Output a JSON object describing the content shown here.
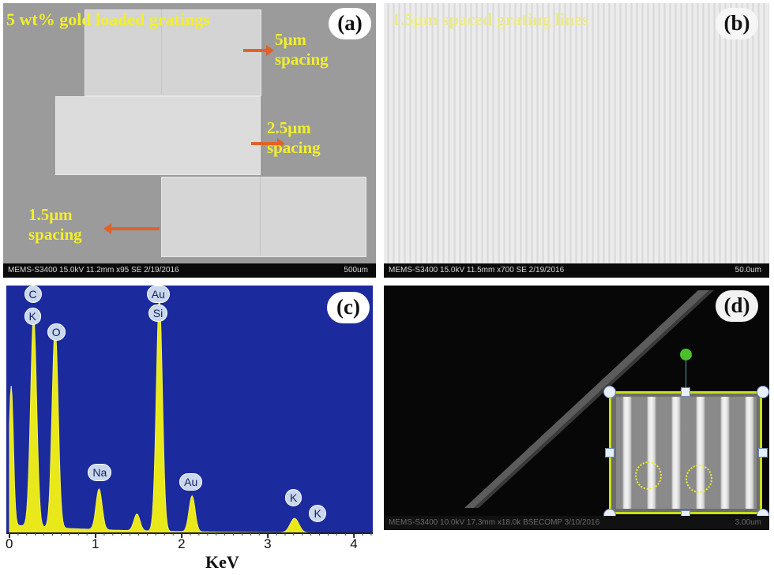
{
  "panel_a": {
    "title": "5 wt% gold loaded gratings",
    "letter": "(a)",
    "label_5um": [
      "5μm",
      "spacing"
    ],
    "label_25um": [
      "2.5μm",
      "spacing"
    ],
    "label_15um": [
      "1.5μm",
      "spacing"
    ],
    "info_bar": "MEMS-S3400 15.0kV 11.2mm x95 SE  2/19/2016",
    "scale": "500um"
  },
  "panel_b": {
    "title": "1.5μm spaced grating lines",
    "letter": "(b)",
    "info_bar": "MEMS-S3400 15.0kV 11.5mm x700 SE  2/19/2016",
    "scale": "50.0um"
  },
  "panel_c": {
    "letter": "(c)",
    "background_color": "#1b2a9c",
    "peak_color": "#e8e81a",
    "peak_labels": [
      "C",
      "K",
      "O",
      "Au",
      "Si",
      "Na",
      "Au",
      "K",
      "K"
    ]
  },
  "panel_d": {
    "letter": "(d)",
    "info_bar": "MEMS-S3400 10.0kV 17.3mm x18.0k BSECOMP 3/10/2016",
    "scale": "3.00um"
  },
  "chart_data": {
    "type": "line",
    "xlabel": "KeV",
    "xlim": [
      0,
      4.2
    ],
    "ylim": [
      0,
      1
    ],
    "x_ticks": [
      0,
      1,
      2,
      3,
      4
    ],
    "x_tick_labels": [
      "0",
      "1",
      "2",
      "3",
      "4"
    ],
    "peaks": [
      {
        "x": 0.02,
        "y": 0.58
      },
      {
        "x": 0.28,
        "y": 0.88
      },
      {
        "x": 0.53,
        "y": 0.84
      },
      {
        "x": 1.04,
        "y": 0.17
      },
      {
        "x": 1.48,
        "y": 0.07
      },
      {
        "x": 1.74,
        "y": 0.98
      },
      {
        "x": 2.12,
        "y": 0.15
      },
      {
        "x": 3.31,
        "y": 0.06
      }
    ],
    "peak_labels": [
      {
        "text": "C",
        "x": 0.28
      },
      {
        "text": "K",
        "x": 0.28
      },
      {
        "text": "O",
        "x": 0.53
      },
      {
        "text": "Au",
        "x": 1.74
      },
      {
        "text": "Si",
        "x": 1.74
      },
      {
        "text": "Na",
        "x": 1.04
      },
      {
        "text": "Au",
        "x": 2.12
      },
      {
        "text": "K",
        "x": 3.31
      },
      {
        "text": "K",
        "x": 3.59
      }
    ]
  }
}
